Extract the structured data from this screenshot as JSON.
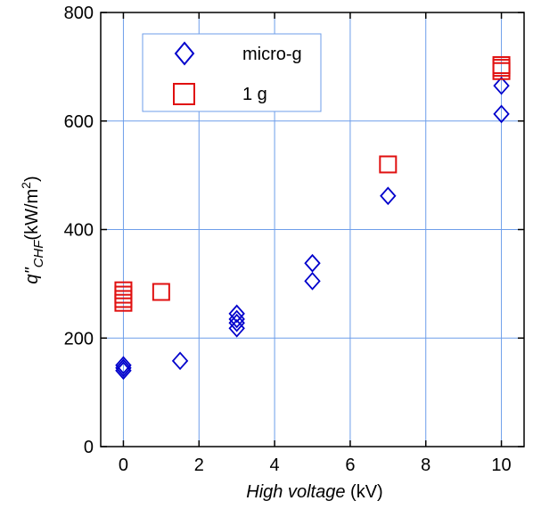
{
  "chart_data": {
    "type": "scatter",
    "xlabel_italic": "High voltage",
    "xlabel_unit": " (kV)",
    "ylabel_main": "q\"",
    "ylabel_sub": "CHF",
    "ylabel_unit": "(kW/m",
    "ylabel_sup": "2",
    "ylabel_close": ")",
    "xlim": [
      -0.6,
      10.6
    ],
    "ylim": [
      0,
      800
    ],
    "xticks": [
      0,
      2,
      4,
      6,
      8,
      10
    ],
    "yticks": [
      0,
      200,
      400,
      600,
      800
    ],
    "grid": true,
    "legend_position": "top-left",
    "series": [
      {
        "name": "micro-g",
        "marker": "diamond",
        "color": "#0000cc",
        "points": [
          [
            0,
            140
          ],
          [
            0,
            145
          ],
          [
            0,
            150
          ],
          [
            1.5,
            158
          ],
          [
            3,
            218
          ],
          [
            3,
            228
          ],
          [
            3,
            235
          ],
          [
            3,
            245
          ],
          [
            5,
            305
          ],
          [
            5,
            338
          ],
          [
            7,
            462
          ],
          [
            10,
            613
          ],
          [
            10,
            665
          ]
        ]
      },
      {
        "name": "1 g",
        "marker": "square",
        "color": "#e01010",
        "points": [
          [
            0,
            265
          ],
          [
            0,
            272
          ],
          [
            0,
            280
          ],
          [
            0,
            288
          ],
          [
            1,
            285
          ],
          [
            7,
            520
          ],
          [
            10,
            692
          ],
          [
            10,
            698
          ],
          [
            10,
            703
          ]
        ]
      }
    ]
  }
}
